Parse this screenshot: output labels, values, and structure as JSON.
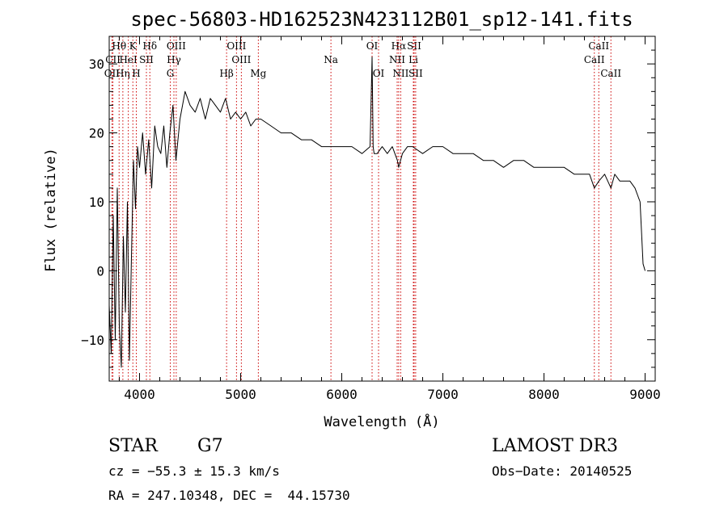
{
  "chart_data": {
    "type": "line",
    "title": "spec-56803-HD162523N423112B01_sp12-141.fits",
    "xlabel": "Wavelength (Å)",
    "ylabel": "Flux (relative)",
    "xlim": [
      3700,
      9100
    ],
    "ylim": [
      -16,
      34
    ],
    "xticks": [
      4000,
      5000,
      6000,
      7000,
      8000,
      9000
    ],
    "yticks": [
      -10,
      0,
      10,
      20,
      30
    ],
    "grid": false,
    "series": [
      {
        "x": [
          3700,
          3720,
          3740,
          3760,
          3780,
          3800,
          3820,
          3840,
          3860,
          3880,
          3900,
          3920,
          3940,
          3960,
          3980,
          4000,
          4030,
          4060,
          4090,
          4120,
          4150,
          4180,
          4210,
          4240,
          4270,
          4300,
          4330,
          4360,
          4400,
          4450,
          4500,
          4550,
          4600,
          4650,
          4700,
          4750,
          4800,
          4850,
          4900,
          4950,
          5000,
          5050,
          5100,
          5150,
          5200,
          5300,
          5400,
          5500,
          5600,
          5700,
          5800,
          5900,
          6000,
          6100,
          6200,
          6280,
          6300,
          6310,
          6320,
          6350,
          6400,
          6450,
          6500,
          6550,
          6563,
          6600,
          6650,
          6700,
          6800,
          6900,
          7000,
          7100,
          7200,
          7300,
          7400,
          7500,
          7600,
          7700,
          7800,
          7900,
          8000,
          8100,
          8200,
          8300,
          8400,
          8450,
          8498,
          8542,
          8600,
          8662,
          8700,
          8750,
          8800,
          8850,
          8900,
          8950,
          8980,
          9000
        ],
        "y": [
          -5,
          -12,
          8,
          -10,
          12,
          -8,
          -14,
          5,
          -6,
          10,
          -13,
          2,
          16,
          9,
          18,
          15,
          20,
          14,
          19,
          12,
          21,
          18,
          17,
          21,
          15,
          20,
          24,
          16,
          22,
          26,
          24,
          23,
          25,
          22,
          25,
          24,
          23,
          25,
          22,
          23,
          22,
          23,
          21,
          22,
          22,
          21,
          20,
          20,
          19,
          19,
          18,
          18,
          18,
          18,
          17,
          18,
          31,
          18,
          17,
          17,
          18,
          17,
          18,
          16,
          15,
          17,
          18,
          18,
          17,
          18,
          18,
          17,
          17,
          17,
          16,
          16,
          15,
          16,
          16,
          15,
          15,
          15,
          15,
          14,
          14,
          14,
          12,
          13,
          14,
          12,
          14,
          13,
          13,
          13,
          12,
          10,
          1,
          0
        ]
      }
    ],
    "line_markers": [
      {
        "name": "Hθ",
        "wl": 3798,
        "row": 1
      },
      {
        "name": "OII",
        "wl": 3727,
        "row": 3
      },
      {
        "name": "Hη",
        "wl": 3835,
        "row": 3
      },
      {
        "name": "CII",
        "wl": 3737,
        "row": 2
      },
      {
        "name": "HeI",
        "wl": 3889,
        "row": 2
      },
      {
        "name": "K",
        "wl": 3934,
        "row": 1
      },
      {
        "name": "SII",
        "wl": 4068,
        "row": 2
      },
      {
        "name": "H",
        "wl": 3968,
        "row": 3
      },
      {
        "name": "Hδ",
        "wl": 4102,
        "row": 1
      },
      {
        "name": "OIII",
        "wl": 4363,
        "row": 1
      },
      {
        "name": "Hγ",
        "wl": 4340,
        "row": 2
      },
      {
        "name": "G",
        "wl": 4304,
        "row": 3
      },
      {
        "name": "Hβ",
        "wl": 4861,
        "row": 3
      },
      {
        "name": "OIII",
        "wl": 4959,
        "row": 1
      },
      {
        "name": "OIII",
        "wl": 5007,
        "row": 2
      },
      {
        "name": "Mg",
        "wl": 5175,
        "row": 3
      },
      {
        "name": "Na",
        "wl": 5893,
        "row": 2
      },
      {
        "name": "OI",
        "wl": 6300,
        "row": 1
      },
      {
        "name": "OI",
        "wl": 6364,
        "row": 3
      },
      {
        "name": "Hα",
        "wl": 6563,
        "row": 1
      },
      {
        "name": "SII",
        "wl": 6716,
        "row": 1
      },
      {
        "name": "NII",
        "wl": 6548,
        "row": 2
      },
      {
        "name": "NII",
        "wl": 6583,
        "row": 3
      },
      {
        "name": "Li",
        "wl": 6708,
        "row": 2
      },
      {
        "name": "SII",
        "wl": 6731,
        "row": 3
      },
      {
        "name": "CaII",
        "wl": 8542,
        "row": 1
      },
      {
        "name": "CaII",
        "wl": 8498,
        "row": 2
      },
      {
        "name": "CaII",
        "wl": 8662,
        "row": 3
      }
    ],
    "marker_color": "#cc0000",
    "line_color": "#000000"
  },
  "info": {
    "class": "STAR",
    "subclass": "G7",
    "cz": "cz = −55.3 ± 15.3 km/s",
    "coords": "RA = 247.10348, DEC =  44.15730",
    "survey": "LAMOST DR3",
    "obs_date": "Obs−Date: 20140525"
  }
}
